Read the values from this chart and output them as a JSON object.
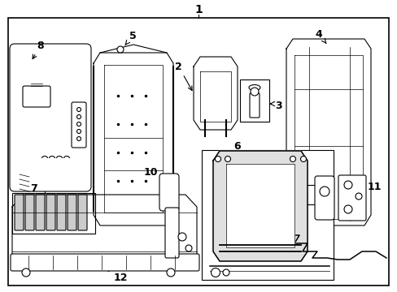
{
  "bg_color": "#ffffff",
  "line_color": "#000000",
  "text_color": "#000000",
  "figsize": [
    4.89,
    3.6
  ],
  "dpi": 100
}
